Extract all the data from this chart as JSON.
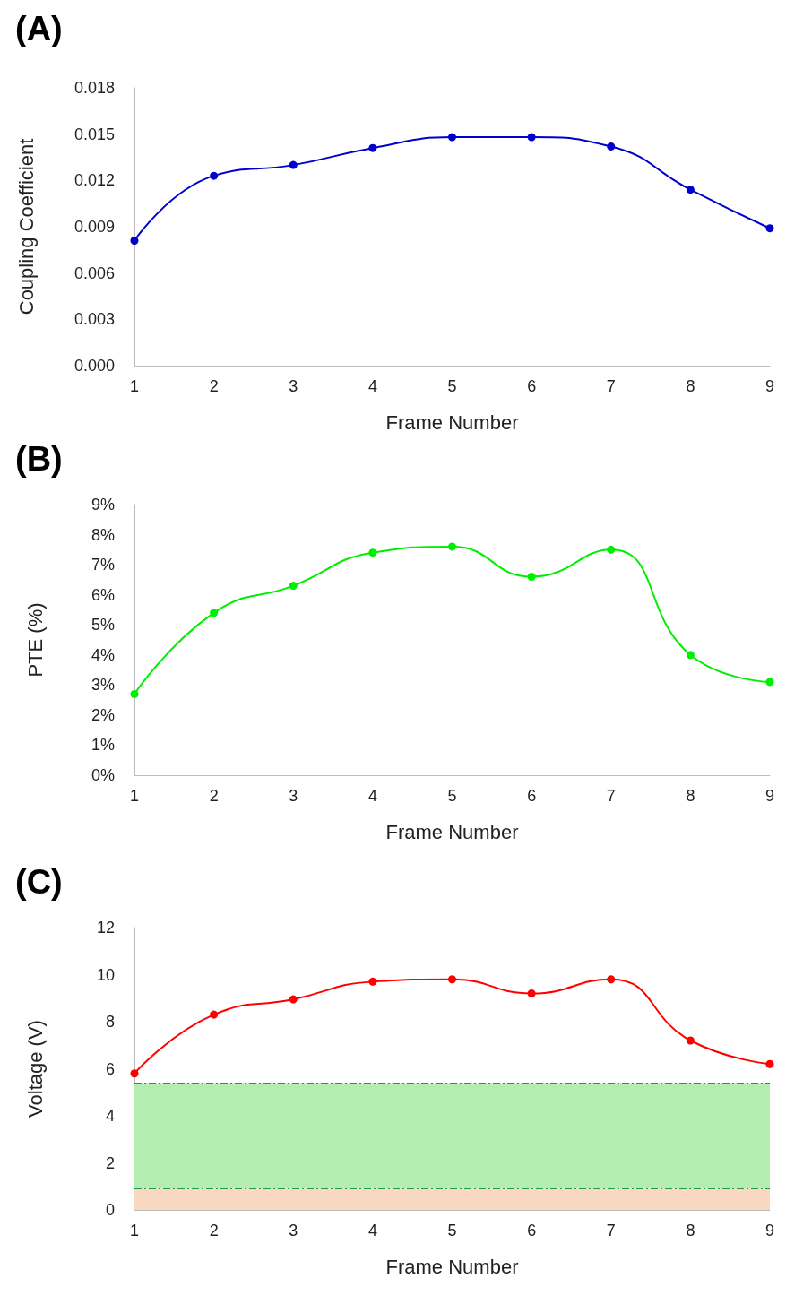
{
  "chart_data": [
    {
      "type": "line",
      "title": "(A)",
      "xlabel": "Frame Number",
      "ylabel": "Coupling Coefficient",
      "x": [
        1,
        2,
        3,
        4,
        5,
        6,
        7,
        8,
        9
      ],
      "series": [
        {
          "color": "#0000cc",
          "values": [
            0.0081,
            0.0123,
            0.013,
            0.0141,
            0.0148,
            0.0148,
            0.0142,
            0.0114,
            0.0089
          ]
        }
      ],
      "xlim": [
        1,
        9
      ],
      "xticks": [
        1,
        2,
        3,
        4,
        5,
        6,
        7,
        8,
        9
      ],
      "ylim": [
        0,
        0.018
      ],
      "yticks": [
        {
          "value": 0,
          "label": "0.000"
        },
        {
          "value": 0.003,
          "label": "0.003"
        },
        {
          "value": 0.006,
          "label": "0.006"
        },
        {
          "value": 0.009,
          "label": "0.009"
        },
        {
          "value": 0.012,
          "label": "0.012"
        },
        {
          "value": 0.015,
          "label": "0.015"
        },
        {
          "value": 0.018,
          "label": "0.018"
        }
      ],
      "grid": false,
      "marker": "circle",
      "line_style": "solid"
    },
    {
      "type": "line",
      "title": "(B)",
      "xlabel": "Frame Number",
      "ylabel": "PTE (%)",
      "x": [
        1,
        2,
        3,
        4,
        5,
        6,
        7,
        8,
        9
      ],
      "series": [
        {
          "color": "#00ee00",
          "values": [
            2.7,
            5.4,
            6.3,
            7.4,
            7.6,
            6.6,
            7.5,
            4.0,
            3.1
          ]
        }
      ],
      "xlim": [
        1,
        9
      ],
      "xticks": [
        1,
        2,
        3,
        4,
        5,
        6,
        7,
        8,
        9
      ],
      "ylim": [
        0,
        9
      ],
      "yticks": [
        {
          "value": 0,
          "label": "0%"
        },
        {
          "value": 1,
          "label": "1%"
        },
        {
          "value": 2,
          "label": "2%"
        },
        {
          "value": 3,
          "label": "3%"
        },
        {
          "value": 4,
          "label": "4%"
        },
        {
          "value": 5,
          "label": "5%"
        },
        {
          "value": 6,
          "label": "6%"
        },
        {
          "value": 7,
          "label": "7%"
        },
        {
          "value": 8,
          "label": "8%"
        },
        {
          "value": 9,
          "label": "9%"
        }
      ],
      "grid": false,
      "marker": "circle",
      "line_style": "solid"
    },
    {
      "type": "line",
      "title": "(C)",
      "xlabel": "Frame Number",
      "ylabel": "Voltage (V)",
      "x": [
        1,
        2,
        3,
        4,
        5,
        6,
        7,
        8,
        9
      ],
      "series": [
        {
          "color": "#ff0000",
          "values": [
            5.8,
            8.3,
            8.95,
            9.7,
            9.8,
            9.2,
            9.8,
            7.2,
            6.2
          ]
        }
      ],
      "xlim": [
        1,
        9
      ],
      "xticks": [
        1,
        2,
        3,
        4,
        5,
        6,
        7,
        8,
        9
      ],
      "ylim": [
        0,
        12
      ],
      "yticks": [
        0,
        2,
        4,
        6,
        8,
        10,
        12
      ],
      "bands": [
        {
          "axis": "y",
          "from": 0.9,
          "to": 5.4,
          "color": "#b3edb0"
        },
        {
          "axis": "y",
          "from": 0,
          "to": 0.9,
          "color": "#f8d8c0"
        }
      ],
      "ref_lines": [
        {
          "axis": "y",
          "value": 5.4,
          "color": "#1f9a4a",
          "line_style": "dashed"
        },
        {
          "axis": "y",
          "value": 0.9,
          "color": "#1f9a4a",
          "line_style": "dashed"
        }
      ],
      "grid": false,
      "marker": "circle",
      "line_style": "solid"
    }
  ]
}
